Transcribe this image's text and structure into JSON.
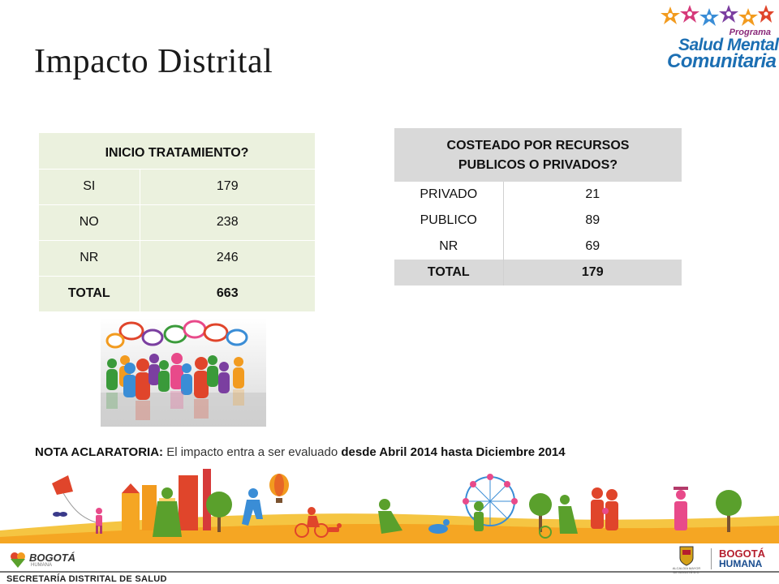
{
  "slide": {
    "title": "Impacto Distrital"
  },
  "logo": {
    "program_label": "Programa",
    "line1": "Salud Mental",
    "line2": "Comunitaria"
  },
  "table_inicio": {
    "header": "INICIO TRATAMIENTO?",
    "rows": [
      {
        "label": "SI",
        "value": "179"
      },
      {
        "label": "NO",
        "value": "238"
      },
      {
        "label": "NR",
        "value": "246"
      }
    ],
    "total": {
      "label": "TOTAL",
      "value": "663"
    }
  },
  "table_costeado": {
    "header_line1": "COSTEADO POR RECURSOS",
    "header_line2": "PUBLICOS O PRIVADOS?",
    "rows": [
      {
        "label": "PRIVADO",
        "value": "21"
      },
      {
        "label": "PUBLICO",
        "value": "89"
      },
      {
        "label": "NR",
        "value": "69"
      }
    ],
    "total": {
      "label": "TOTAL",
      "value": "179"
    }
  },
  "note": {
    "lead": "NOTA ACLARATORIA:",
    "text": " El impacto entra a ser evaluado ",
    "emphasis": "desde Abril 2014 hasta Diciembre 2014"
  },
  "footer": {
    "bogota_small": "BOGOTÁ",
    "bogota_small_sub": "HUMANA",
    "secretaria": "SECRETARÍA DISTRITAL DE SALUD",
    "alcaldia": "ALCALDÍA MAYOR DE BOGOTÁ D.C.",
    "bogota_big": "BOGOTÁ",
    "humana": "HUMANA"
  },
  "colors": {
    "table1_bg": "#ebf1de",
    "table2_header_bg": "#d9d9d9",
    "logo_blue": "#1c6fb3",
    "banner_orange": "#f5a623",
    "banner_green": "#5aa02c"
  }
}
